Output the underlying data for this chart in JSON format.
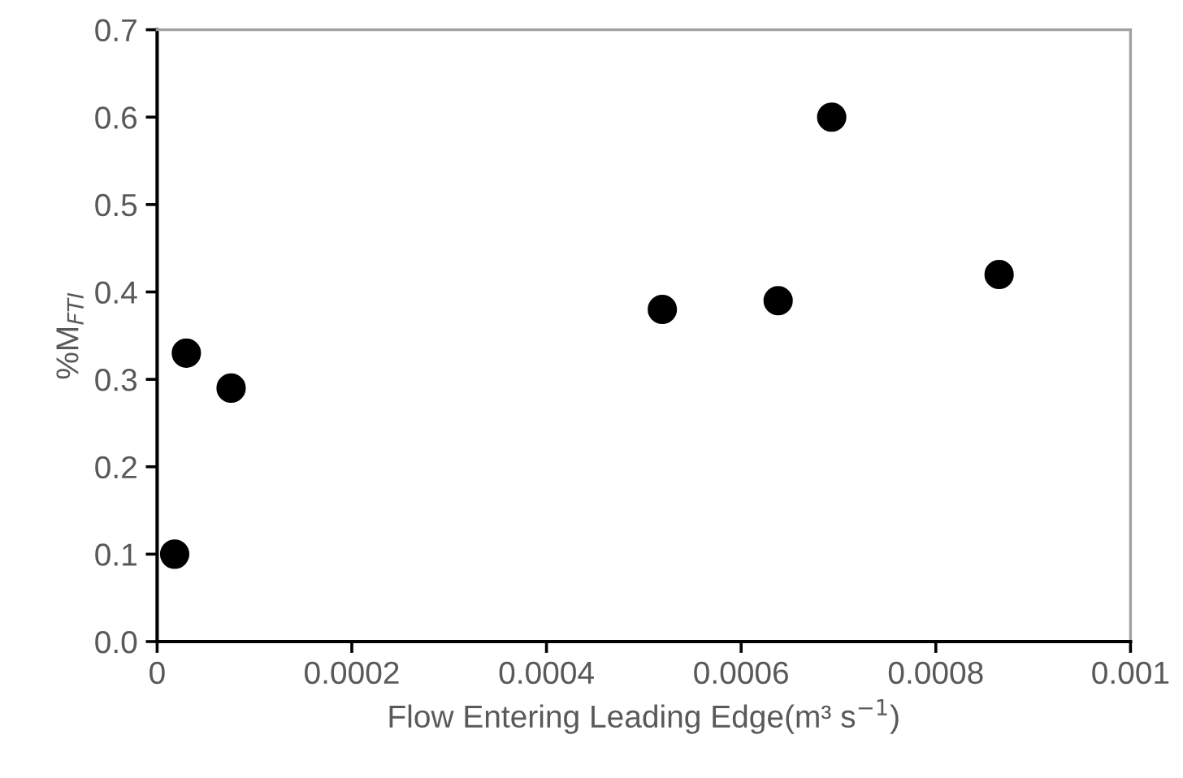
{
  "chart_data": {
    "type": "scatter",
    "xlabel": "Flow Entering Leading Edge(m³ s$^{−1}$)",
    "ylabel": "%M$_{FTI}$",
    "x": [
      1.8e-05,
      3e-05,
      7.6e-05,
      0.000519,
      0.000638,
      0.000693,
      0.000865
    ],
    "series": [
      {
        "color": "#000000",
        "values": [
          0.1,
          0.33,
          0.29,
          0.38,
          0.39,
          0.6,
          0.42
        ]
      }
    ],
    "xlim": [
      0,
      0.001
    ],
    "xticks": [
      0,
      0.0002,
      0.0004,
      0.0006,
      0.0008,
      0.001
    ],
    "ylim": [
      0,
      0.7
    ],
    "yticks": [
      {
        "value": 0,
        "label": "0.0"
      },
      {
        "value": 0.1,
        "label": "0.1"
      },
      {
        "value": 0.2,
        "label": "0.2"
      },
      {
        "value": 0.3,
        "label": "0.3"
      },
      {
        "value": 0.4,
        "label": "0.4"
      },
      {
        "value": 0.5,
        "label": "0.5"
      },
      {
        "value": 0.6,
        "label": "0.6"
      },
      {
        "value": 0.7,
        "label": "0.7"
      }
    ],
    "marker": "circle",
    "grid": false,
    "legend": false
  }
}
